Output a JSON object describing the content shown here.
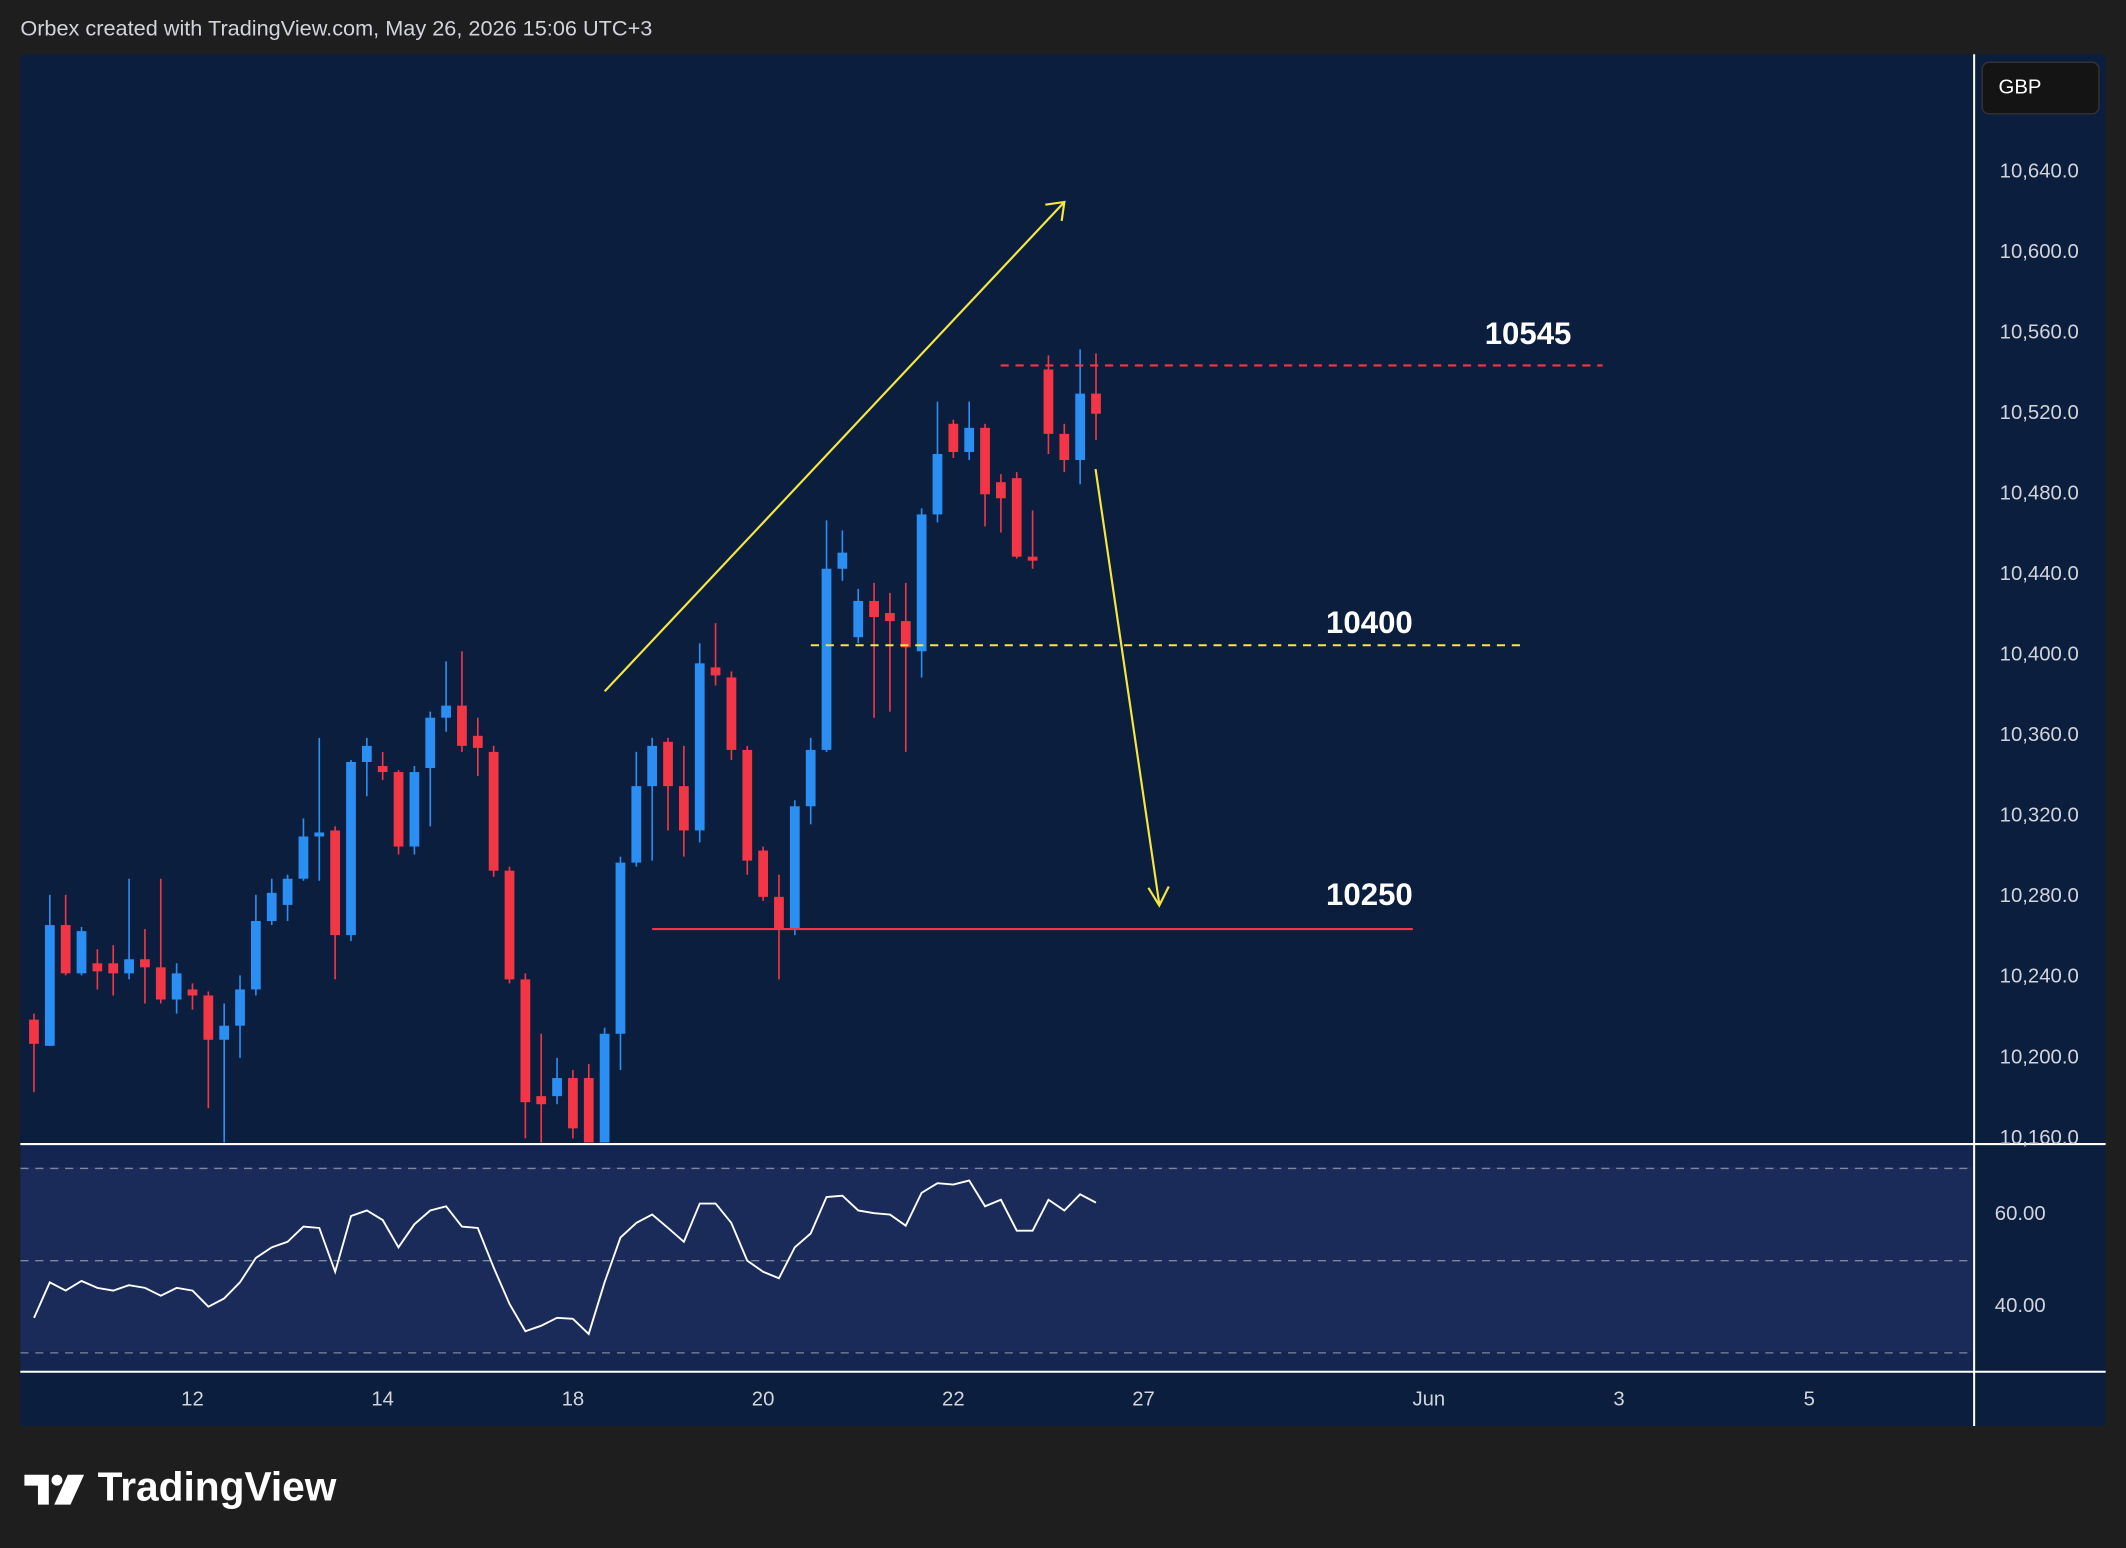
{
  "header": {
    "text": "Orbex created with TradingView.com, May 26, 2026 15:06 UTC+3"
  },
  "footer": {
    "brand": "TradingView"
  },
  "chart_data": [
    {
      "type": "candlestick",
      "currency": "GBP",
      "up_color": "#2a8ef2",
      "down_color": "#f23645",
      "open": [
        10219,
        10206,
        10266,
        10242,
        10247,
        10247,
        10242,
        10249,
        10245,
        10229,
        10234,
        10231,
        10209,
        10216,
        10234,
        10268,
        10276,
        10289,
        10310,
        10313,
        10261,
        10347,
        10345,
        10342,
        10305,
        10344,
        10369,
        10375,
        10360,
        10352,
        10293,
        10239,
        10181,
        10181,
        10190,
        10190,
        10158,
        10212,
        10297,
        10335,
        10357,
        10335,
        10313,
        10394,
        10389,
        10353,
        10303,
        10280,
        10264,
        10325,
        10353,
        10443,
        10409,
        10427,
        10421,
        10417,
        10402,
        10470,
        10515,
        10501,
        10513,
        10486,
        10488,
        10449,
        10542,
        10510,
        10497,
        10530
      ],
      "high": [
        10222,
        10281,
        10281,
        10265,
        10254,
        10256,
        10289,
        10264,
        10289,
        10247,
        10237,
        10233,
        10227,
        10241,
        10281,
        10289,
        10291,
        10319,
        10359,
        10315,
        10348,
        10359,
        10352,
        10343,
        10345,
        10372,
        10397,
        10402,
        10369,
        10355,
        10295,
        10242,
        10212,
        10200,
        10194,
        10197,
        10215,
        10300,
        10352,
        10359,
        10359,
        10355,
        10406,
        10416,
        10392,
        10355,
        10305,
        10291,
        10328,
        10359,
        10467,
        10462,
        10433,
        10436,
        10431,
        10436,
        10473,
        10526,
        10517,
        10526,
        10515,
        10490,
        10491,
        10472,
        10549,
        10515,
        10552,
        10550
      ],
      "low": [
        10183,
        10206,
        10241,
        10241,
        10234,
        10231,
        10239,
        10227,
        10227,
        10222,
        10224,
        10175,
        10158,
        10200,
        10231,
        10266,
        10268,
        10288,
        10288,
        10239,
        10258,
        10330,
        10338,
        10301,
        10301,
        10315,
        10362,
        10352,
        10340,
        10290,
        10237,
        10160,
        10158,
        10177,
        10160,
        10158,
        10158,
        10194,
        10295,
        10298,
        10313,
        10300,
        10307,
        10385,
        10348,
        10291,
        10278,
        10239,
        10261,
        10316,
        10352,
        10437,
        10406,
        10369,
        10372,
        10352,
        10389,
        10466,
        10498,
        10497,
        10464,
        10461,
        10448,
        10443,
        10500,
        10491,
        10485,
        10507
      ],
      "close": [
        10207,
        10266,
        10242,
        10263,
        10243,
        10242,
        10249,
        10245,
        10229,
        10242,
        10231,
        10209,
        10216,
        10234,
        10268,
        10282,
        10289,
        10310,
        10312,
        10261,
        10347,
        10355,
        10342,
        10305,
        10342,
        10369,
        10375,
        10355,
        10354,
        10293,
        10239,
        10178,
        10177,
        10190,
        10165,
        10158,
        10212,
        10297,
        10335,
        10355,
        10335,
        10313,
        10396,
        10390,
        10353,
        10298,
        10280,
        10264,
        10325,
        10353,
        10443,
        10451,
        10427,
        10419,
        10417,
        10404,
        10470,
        10500,
        10501,
        10513,
        10480,
        10478,
        10449,
        10447,
        10510,
        10497,
        10530,
        10520
      ],
      "ylim": [
        10157.2,
        10698.6
      ],
      "yticks": [
        {
          "value": 10160,
          "label": "10,160.0"
        },
        {
          "value": 10200,
          "label": "10,200.0"
        },
        {
          "value": 10240,
          "label": "10,240.0"
        },
        {
          "value": 10280,
          "label": "10,280.0"
        },
        {
          "value": 10320,
          "label": "10,320.0"
        },
        {
          "value": 10360,
          "label": "10,360.0"
        },
        {
          "value": 10400,
          "label": "10,400.0"
        },
        {
          "value": 10440,
          "label": "10,440.0"
        },
        {
          "value": 10480,
          "label": "10,480.0"
        },
        {
          "value": 10520,
          "label": "10,520.0"
        },
        {
          "value": 10560,
          "label": "10,560.0"
        },
        {
          "value": 10600,
          "label": "10,600.0"
        },
        {
          "value": 10640,
          "label": "10,640.0"
        }
      ],
      "xlim": [
        -0.86,
        122.4
      ],
      "xticks": [
        {
          "value": 10,
          "label": "12"
        },
        {
          "value": 22,
          "label": "14"
        },
        {
          "value": 34,
          "label": "18"
        },
        {
          "value": 46,
          "label": "20"
        },
        {
          "value": 58,
          "label": "22"
        },
        {
          "value": 70,
          "label": "27"
        },
        {
          "value": 88,
          "label": "Jun"
        },
        {
          "value": 100,
          "label": "3"
        },
        {
          "value": 112,
          "label": "5"
        }
      ],
      "annotations": [
        {
          "text": "10545",
          "level": 10544,
          "color": "#f23645",
          "style": "dashed"
        },
        {
          "text": "10400",
          "level": 10405,
          "color": "#f5e642",
          "style": "dashed"
        },
        {
          "text": "10250",
          "level": 10264,
          "color": "#f23645",
          "style": "solid"
        }
      ]
    },
    {
      "type": "line",
      "series": [
        {
          "color": "#ffffff",
          "values": [
            37.6,
            45.3,
            43.5,
            45.6,
            44.1,
            43.5,
            44.7,
            44.1,
            42.4,
            44.1,
            43.5,
            40.0,
            41.8,
            45.3,
            50.6,
            52.9,
            54.1,
            57.4,
            57.1,
            47.6,
            59.7,
            60.9,
            58.8,
            52.9,
            57.9,
            60.9,
            61.8,
            57.4,
            57.1,
            48.5,
            40.6,
            34.7,
            35.9,
            37.6,
            37.4,
            34.1,
            45.3,
            55.0,
            58.2,
            60.0,
            57.1,
            54.1,
            62.4,
            62.4,
            58.2,
            50.0,
            47.6,
            46.2,
            52.9,
            55.9,
            63.8,
            64.1,
            60.9,
            60.3,
            60.0,
            57.6,
            64.7,
            66.8,
            66.5,
            67.4,
            61.8,
            63.2,
            56.5,
            56.5,
            63.2,
            60.9,
            64.4,
            62.6
          ]
        }
      ],
      "ylim": [
        25.9,
        75.3
      ],
      "yticks": [
        {
          "value": 40,
          "label": "40.00"
        },
        {
          "value": 60,
          "label": "60.00"
        }
      ],
      "levels": [
        70,
        50,
        30
      ]
    }
  ]
}
